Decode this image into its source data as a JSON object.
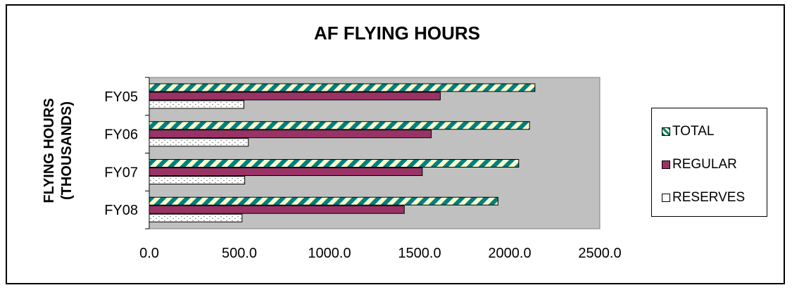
{
  "chart_data": {
    "type": "bar",
    "orientation": "horizontal",
    "title": "AF FLYING HOURS",
    "ylabel_line1": "FLYING HOURS",
    "ylabel_line2": "(THOUSANDS)",
    "categories": [
      "FY05",
      "FY06",
      "FY07",
      "FY08"
    ],
    "series": [
      {
        "name": "TOTAL",
        "values": [
          2140,
          2110,
          2050,
          1935
        ]
      },
      {
        "name": "REGULAR",
        "values": [
          1615,
          1565,
          1515,
          1415
        ]
      },
      {
        "name": "RESERVES",
        "values": [
          525,
          550,
          530,
          515
        ]
      }
    ],
    "xlim": [
      0,
      2500
    ],
    "xticks": [
      "0.0",
      "500.0",
      "1000.0",
      "1500.0",
      "2000.0",
      "2500.0"
    ],
    "grid": false,
    "legend_position": "right",
    "colors": {
      "plot_background": "#c0c0c0",
      "total_stripe_a": "#008080",
      "total_stripe_b": "#ffffcc",
      "regular": "#993366",
      "reserves": "#ffffff"
    }
  }
}
